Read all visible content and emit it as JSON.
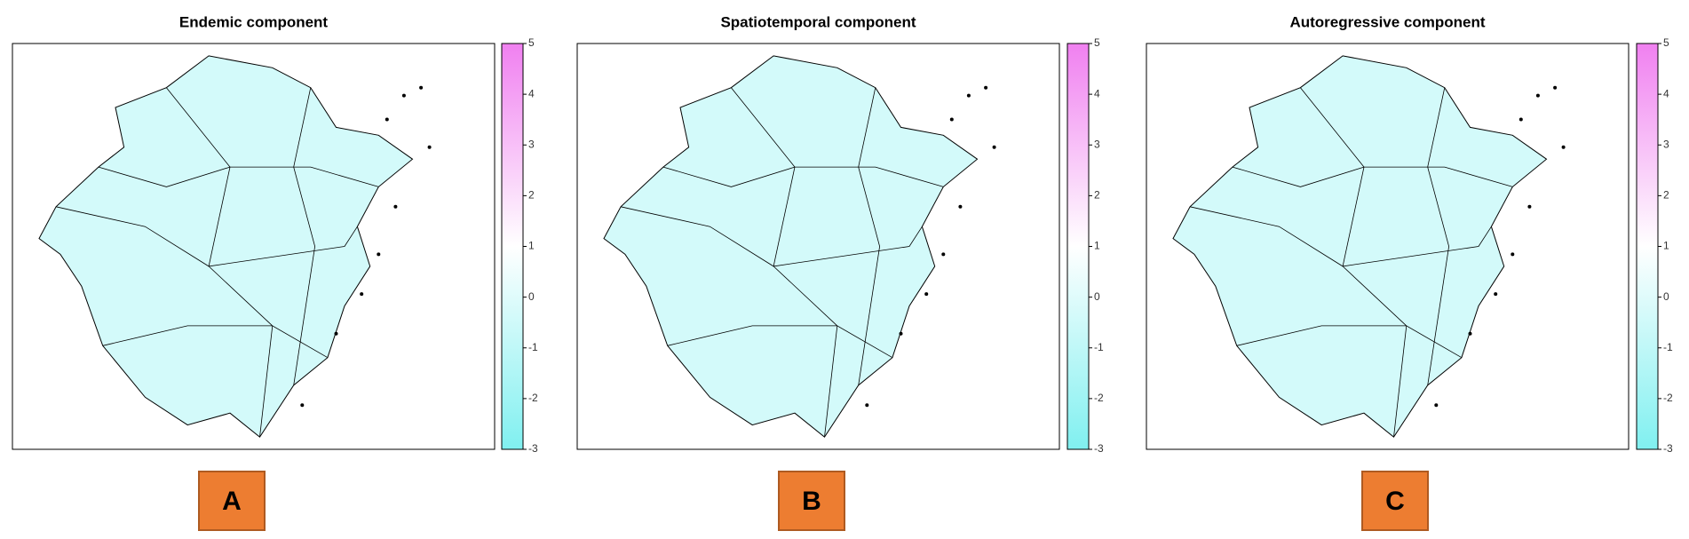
{
  "chart_data": [
    {
      "type": "map",
      "title": "Endemic component",
      "label": "A",
      "colorbar": {
        "ylim": [
          -3,
          5
        ],
        "yticks": [
          -3,
          -2,
          -1,
          0,
          1,
          2,
          3,
          4,
          5
        ],
        "colors": [
          "#80f0f0",
          "#ffffff",
          "#f080f0"
        ]
      }
    },
    {
      "type": "map",
      "title": "Spatiotemporal component",
      "label": "B",
      "colorbar": {
        "ylim": [
          -3,
          5
        ],
        "yticks": [
          -3,
          -2,
          -1,
          0,
          1,
          2,
          3,
          4,
          5
        ],
        "colors": [
          "#80f0f0",
          "#ffffff",
          "#f080f0"
        ]
      }
    },
    {
      "type": "map",
      "title": "Autoregressive component",
      "label": "C",
      "colorbar": {
        "ylim": [
          -3,
          5
        ],
        "yticks": [
          -3,
          -2,
          -1,
          0,
          1,
          2,
          3,
          4,
          5
        ],
        "colors": [
          "#80f0f0",
          "#ffffff",
          "#f080f0"
        ]
      }
    }
  ]
}
